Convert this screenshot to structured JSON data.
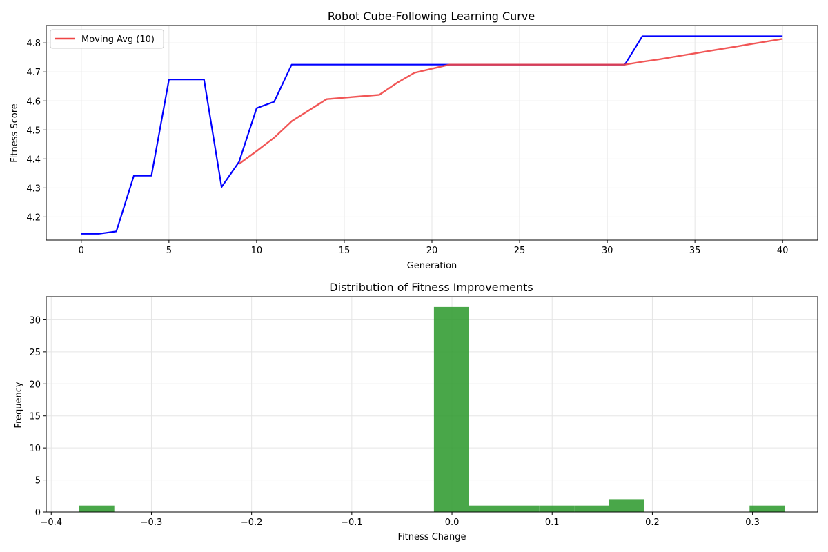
{
  "chart_data": [
    {
      "type": "line",
      "title": "Robot Cube-Following Learning Curve",
      "xlabel": "Generation",
      "ylabel": "Fitness Score",
      "xlim": [
        -2,
        42
      ],
      "ylim": [
        4.12,
        4.86
      ],
      "xticks": [
        0,
        5,
        10,
        15,
        20,
        25,
        30,
        35,
        40
      ],
      "yticks": [
        4.2,
        4.3,
        4.4,
        4.5,
        4.6,
        4.7,
        4.8
      ],
      "grid": true,
      "legend_position": "upper-left",
      "series": [
        {
          "color": "#0000ff",
          "x": [
            0,
            1,
            2,
            3,
            4,
            5,
            6,
            7,
            8,
            9,
            10,
            11,
            12,
            13,
            14,
            15,
            16,
            17,
            18,
            19,
            20,
            21,
            22,
            23,
            24,
            25,
            26,
            27,
            28,
            29,
            30,
            31,
            32,
            33,
            34,
            35,
            36,
            37,
            38,
            39,
            40
          ],
          "y": [
            4.142,
            4.142,
            4.15,
            4.342,
            4.342,
            4.674,
            4.674,
            4.674,
            4.303,
            4.39,
            4.575,
            4.597,
            4.725,
            4.725,
            4.725,
            4.725,
            4.725,
            4.725,
            4.725,
            4.725,
            4.725,
            4.725,
            4.725,
            4.725,
            4.725,
            4.725,
            4.725,
            4.725,
            4.725,
            4.725,
            4.725,
            4.725,
            4.823,
            4.823,
            4.823,
            4.823,
            4.823,
            4.823,
            4.823,
            4.823,
            4.823
          ]
        },
        {
          "name": "Moving Avg (10)",
          "color": "#ef4444",
          "x": [
            9,
            10,
            11,
            12,
            13,
            14,
            15,
            16,
            17,
            18,
            19,
            20,
            21,
            22,
            23,
            24,
            25,
            26,
            27,
            28,
            29,
            30,
            31,
            32,
            33,
            34,
            35,
            36,
            37,
            38,
            39,
            40
          ],
          "y": [
            4.383,
            4.427,
            4.473,
            4.53,
            4.568,
            4.606,
            4.611,
            4.616,
            4.621,
            4.662,
            4.697,
            4.711,
            4.725,
            4.725,
            4.725,
            4.725,
            4.725,
            4.725,
            4.725,
            4.725,
            4.725,
            4.725,
            4.725,
            4.735,
            4.744,
            4.754,
            4.764,
            4.774,
            4.784,
            4.794,
            4.804,
            4.814
          ]
        }
      ]
    },
    {
      "type": "bar",
      "title": "Distribution of Fitness Improvements",
      "xlabel": "Fitness Change",
      "ylabel": "Frequency",
      "xlim": [
        -0.405,
        0.365
      ],
      "ylim": [
        0,
        33.6
      ],
      "xticks": [
        -0.4,
        -0.3,
        -0.2,
        -0.1,
        0.0,
        0.1,
        0.2,
        0.3
      ],
      "xtick_labels": [
        "−0.4",
        "−0.3",
        "−0.2",
        "−0.1",
        "0.0",
        "0.1",
        "0.2",
        "0.3"
      ],
      "yticks": [
        0,
        5,
        10,
        15,
        20,
        25,
        30
      ],
      "grid": true,
      "color": "#2e9a2e",
      "bins": [
        {
          "start": -0.372,
          "end": -0.337,
          "count": 1
        },
        {
          "start": -0.337,
          "end": -0.302,
          "count": 0
        },
        {
          "start": -0.302,
          "end": -0.267,
          "count": 0
        },
        {
          "start": -0.267,
          "end": -0.232,
          "count": 0
        },
        {
          "start": -0.232,
          "end": -0.197,
          "count": 0
        },
        {
          "start": -0.197,
          "end": -0.162,
          "count": 0
        },
        {
          "start": -0.162,
          "end": -0.127,
          "count": 0
        },
        {
          "start": -0.127,
          "end": -0.092,
          "count": 0
        },
        {
          "start": -0.092,
          "end": -0.057,
          "count": 0
        },
        {
          "start": -0.057,
          "end": -0.022,
          "count": 0
        },
        {
          "start": -0.018,
          "end": 0.017,
          "count": 32
        },
        {
          "start": 0.017,
          "end": 0.052,
          "count": 1
        },
        {
          "start": 0.052,
          "end": 0.087,
          "count": 1
        },
        {
          "start": 0.087,
          "end": 0.122,
          "count": 1
        },
        {
          "start": 0.122,
          "end": 0.157,
          "count": 1
        },
        {
          "start": 0.157,
          "end": 0.192,
          "count": 2
        },
        {
          "start": 0.192,
          "end": 0.227,
          "count": 0
        },
        {
          "start": 0.227,
          "end": 0.262,
          "count": 0
        },
        {
          "start": 0.262,
          "end": 0.297,
          "count": 0
        },
        {
          "start": 0.297,
          "end": 0.332,
          "count": 1
        }
      ]
    }
  ]
}
